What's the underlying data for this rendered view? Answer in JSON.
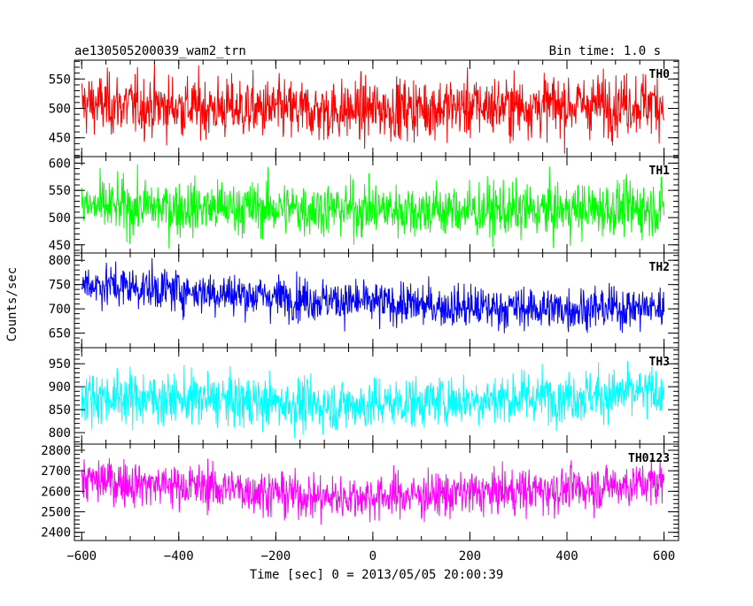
{
  "chart_data": {
    "type": "line",
    "title": "ae130505200039_wam2_trn",
    "bin_time_label": "Bin time: 1.0 s",
    "xlabel": "Time [sec] 0 = 2013/05/05 20:00:39",
    "ylabel": "Counts/sec",
    "xlim": [
      -615,
      630
    ],
    "x_ticks": [
      -600,
      -400,
      -200,
      0,
      200,
      400,
      600
    ],
    "x_tick_labels": [
      "−600",
      "−400",
      "−200",
      "0",
      "200",
      "400",
      "600"
    ],
    "x_range_data": [
      -600,
      600
    ],
    "bin_time_s": 1.0,
    "panels": [
      {
        "name": "TH0",
        "color": "#ff0000",
        "ylim": [
          418,
          582
        ],
        "y_ticks": [
          450,
          500,
          550
        ],
        "baseline": [
          [
            -600,
            508
          ],
          [
            -300,
            500
          ],
          [
            -100,
            495
          ],
          [
            0,
            498
          ],
          [
            200,
            503
          ],
          [
            400,
            505
          ],
          [
            600,
            510
          ]
        ],
        "noise_sd": 26
      },
      {
        "name": "TH1",
        "color": "#00ff00",
        "ylim": [
          435,
          612
        ],
        "y_ticks": [
          450,
          500,
          550,
          600
        ],
        "baseline": [
          [
            -600,
            520
          ],
          [
            -300,
            518
          ],
          [
            0,
            515
          ],
          [
            300,
            512
          ],
          [
            600,
            518
          ]
        ],
        "noise_sd": 25
      },
      {
        "name": "TH2",
        "color": "#0000ff",
        "ylim": [
          620,
          815
        ],
        "y_ticks": [
          650,
          700,
          750,
          800
        ],
        "baseline": [
          [
            -600,
            752
          ],
          [
            -400,
            738
          ],
          [
            -200,
            725
          ],
          [
            0,
            712
          ],
          [
            200,
            703
          ],
          [
            400,
            700
          ],
          [
            600,
            703
          ]
        ],
        "noise_sd": 22
      },
      {
        "name": "TH3",
        "color": "#00ffff",
        "ylim": [
          775,
          985
        ],
        "y_ticks": [
          800,
          850,
          900,
          950
        ],
        "baseline": [
          [
            -600,
            880
          ],
          [
            -300,
            870
          ],
          [
            -100,
            860
          ],
          [
            0,
            862
          ],
          [
            200,
            872
          ],
          [
            400,
            880
          ],
          [
            600,
            888
          ]
        ],
        "noise_sd": 28
      },
      {
        "name": "TH0123",
        "color": "#ff00ff",
        "ylim": [
          2360,
          2830
        ],
        "y_ticks": [
          2400,
          2500,
          2600,
          2700,
          2800
        ],
        "baseline": [
          [
            -600,
            2655
          ],
          [
            -300,
            2615
          ],
          [
            -100,
            2570
          ],
          [
            0,
            2575
          ],
          [
            200,
            2590
          ],
          [
            400,
            2610
          ],
          [
            600,
            2645
          ]
        ],
        "noise_sd": 55
      }
    ]
  }
}
